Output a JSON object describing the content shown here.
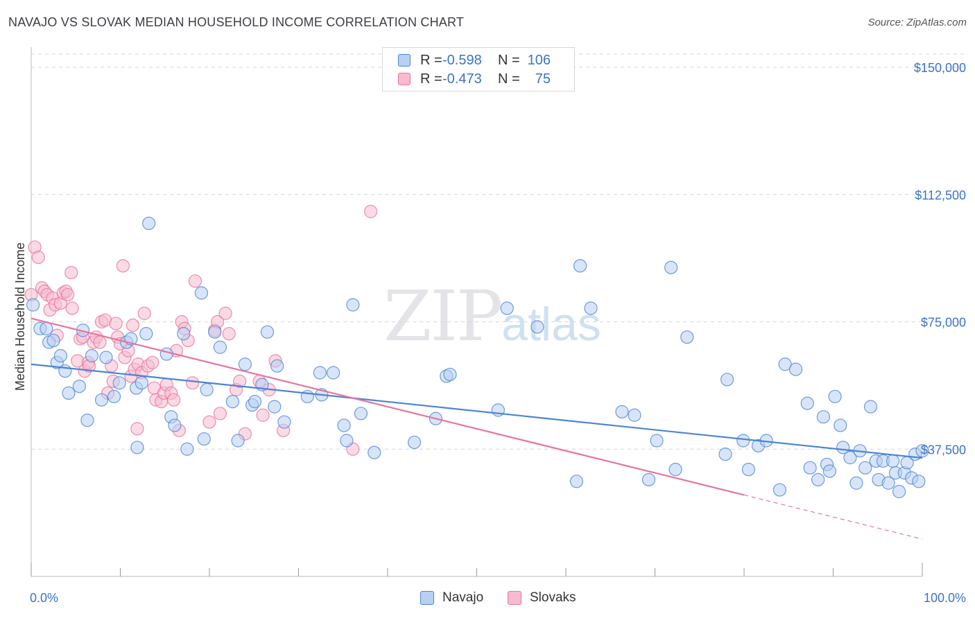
{
  "header": {
    "title": "NAVAJO VS SLOVAK MEDIAN HOUSEHOLD INCOME CORRELATION CHART",
    "source": "Source: ZipAtlas.com"
  },
  "watermark": {
    "main": "ZIP",
    "sub": "atlas"
  },
  "legend": {
    "navajo": {
      "r_label": "R =",
      "r_value": "-0.598",
      "n_label": "N =",
      "n_value": "106"
    },
    "slovaks": {
      "r_label": "R =",
      "r_value": "-0.473",
      "n_label": "N =",
      "n_value": "75"
    }
  },
  "colors": {
    "navajo": "#4a84d6",
    "navajo_fill": "#b8d0f2",
    "slovaks": "#e8739b",
    "slovaks_fill": "#f6bccd",
    "tick_text": "#3a73c8",
    "grid": "#d6d6dc"
  },
  "chart_data": {
    "type": "scatter",
    "title": "NAVAJO VS SLOVAK MEDIAN HOUSEHOLD INCOME CORRELATION CHART",
    "xlabel": "",
    "ylabel": "Median Household Income",
    "xlim": [
      0,
      100
    ],
    "ylim": [
      0,
      157000
    ],
    "x_tick_labels": [
      "0.0%",
      "100.0%"
    ],
    "y_ticks": [
      37500,
      75000,
      112500,
      150000
    ],
    "y_tick_labels": [
      "$37,500",
      "$75,000",
      "$112,500",
      "$150,000"
    ],
    "grid": true,
    "legend_position": "top-center",
    "series": [
      {
        "name": "Navajo",
        "color": "#4a84d6",
        "trend": {
          "x": [
            0,
            100
          ],
          "y": [
            62500,
            34900
          ]
        },
        "points": [
          [
            0.2,
            80000
          ],
          [
            1.0,
            73000
          ],
          [
            1.7,
            73000
          ],
          [
            2.0,
            69000
          ],
          [
            2.5,
            69500
          ],
          [
            2.9,
            63000
          ],
          [
            3.3,
            65000
          ],
          [
            3.8,
            60500
          ],
          [
            4.2,
            54000
          ],
          [
            5.4,
            56000
          ],
          [
            5.8,
            72500
          ],
          [
            6.3,
            46000
          ],
          [
            6.8,
            65000
          ],
          [
            7.9,
            52000
          ],
          [
            8.4,
            64500
          ],
          [
            9.3,
            53000
          ],
          [
            9.9,
            57000
          ],
          [
            10.7,
            69000
          ],
          [
            11.2,
            70000
          ],
          [
            11.8,
            55500
          ],
          [
            11.9,
            38000
          ],
          [
            12.4,
            57000
          ],
          [
            12.9,
            71500
          ],
          [
            13.2,
            104000
          ],
          [
            15.2,
            65500
          ],
          [
            15.7,
            47000
          ],
          [
            16.1,
            44500
          ],
          [
            17.1,
            71500
          ],
          [
            17.5,
            37500
          ],
          [
            19.1,
            83500
          ],
          [
            19.4,
            40500
          ],
          [
            19.7,
            55000
          ],
          [
            20.6,
            72000
          ],
          [
            21.2,
            67500
          ],
          [
            22.6,
            51500
          ],
          [
            23.2,
            40000
          ],
          [
            24.0,
            62500
          ],
          [
            24.8,
            50500
          ],
          [
            25.1,
            51500
          ],
          [
            25.9,
            56500
          ],
          [
            26.5,
            72000
          ],
          [
            27.3,
            50000
          ],
          [
            27.6,
            62000
          ],
          [
            28.4,
            45500
          ],
          [
            31.0,
            53000
          ],
          [
            32.4,
            60000
          ],
          [
            32.6,
            53500
          ],
          [
            33.9,
            60000
          ],
          [
            35.1,
            44500
          ],
          [
            35.4,
            40000
          ],
          [
            36.1,
            80000
          ],
          [
            37.0,
            48000
          ],
          [
            38.5,
            36500
          ],
          [
            43.0,
            39500
          ],
          [
            45.4,
            46500
          ],
          [
            46.6,
            59000
          ],
          [
            47.0,
            59500
          ],
          [
            52.4,
            49000
          ],
          [
            53.4,
            79000
          ],
          [
            56.8,
            73500
          ],
          [
            61.2,
            28000
          ],
          [
            61.6,
            91500
          ],
          [
            62.8,
            79000
          ],
          [
            66.3,
            48500
          ],
          [
            67.7,
            47500
          ],
          [
            69.3,
            28500
          ],
          [
            70.2,
            40000
          ],
          [
            71.8,
            91000
          ],
          [
            72.3,
            31500
          ],
          [
            73.6,
            70500
          ],
          [
            77.9,
            36000
          ],
          [
            78.1,
            58000
          ],
          [
            79.9,
            40000
          ],
          [
            80.5,
            31500
          ],
          [
            81.6,
            38500
          ],
          [
            82.5,
            40000
          ],
          [
            84.0,
            25500
          ],
          [
            84.6,
            62500
          ],
          [
            85.8,
            61000
          ],
          [
            87.1,
            51000
          ],
          [
            87.4,
            32000
          ],
          [
            88.3,
            28500
          ],
          [
            88.9,
            47000
          ],
          [
            89.3,
            33000
          ],
          [
            89.6,
            31000
          ],
          [
            90.2,
            53000
          ],
          [
            90.8,
            44500
          ],
          [
            91.1,
            38000
          ],
          [
            91.9,
            35000
          ],
          [
            92.6,
            27500
          ],
          [
            93.0,
            37000
          ],
          [
            93.6,
            32000
          ],
          [
            94.2,
            50000
          ],
          [
            94.8,
            34000
          ],
          [
            95.1,
            28500
          ],
          [
            95.6,
            34000
          ],
          [
            96.2,
            27500
          ],
          [
            96.7,
            34000
          ],
          [
            97.0,
            30500
          ],
          [
            97.4,
            25000
          ],
          [
            98.0,
            30500
          ],
          [
            98.3,
            33500
          ],
          [
            98.8,
            29000
          ],
          [
            99.2,
            36000
          ],
          [
            99.6,
            28000
          ],
          [
            100.0,
            37000
          ]
        ]
      },
      {
        "name": "Slovaks",
        "color": "#e8739b",
        "trend": {
          "x": [
            0,
            80
          ],
          "y": [
            76000,
            24000
          ]
        },
        "trend_extension": {
          "x": [
            80,
            100
          ],
          "y": [
            24000,
            11000
          ]
        },
        "points": [
          [
            0.0,
            83000
          ],
          [
            0.4,
            97000
          ],
          [
            0.8,
            94000
          ],
          [
            1.2,
            85000
          ],
          [
            1.5,
            84000
          ],
          [
            1.8,
            83000
          ],
          [
            2.1,
            78500
          ],
          [
            2.4,
            82000
          ],
          [
            2.7,
            80000
          ],
          [
            2.9,
            71000
          ],
          [
            3.3,
            80500
          ],
          [
            3.6,
            83500
          ],
          [
            3.9,
            84000
          ],
          [
            4.1,
            83000
          ],
          [
            4.5,
            89500
          ],
          [
            4.6,
            79000
          ],
          [
            5.2,
            63500
          ],
          [
            5.5,
            70000
          ],
          [
            5.8,
            70500
          ],
          [
            6.0,
            60500
          ],
          [
            6.4,
            63000
          ],
          [
            6.5,
            62000
          ],
          [
            7.0,
            69000
          ],
          [
            7.3,
            70500
          ],
          [
            7.7,
            69000
          ],
          [
            7.9,
            75000
          ],
          [
            8.3,
            75500
          ],
          [
            8.6,
            54000
          ],
          [
            9.0,
            62000
          ],
          [
            9.2,
            57500
          ],
          [
            9.5,
            74500
          ],
          [
            9.7,
            70500
          ],
          [
            10.0,
            68500
          ],
          [
            10.3,
            91500
          ],
          [
            10.5,
            64500
          ],
          [
            10.9,
            66500
          ],
          [
            11.2,
            59000
          ],
          [
            11.4,
            74000
          ],
          [
            11.6,
            61000
          ],
          [
            11.9,
            43500
          ],
          [
            12.0,
            62500
          ],
          [
            12.4,
            60000
          ],
          [
            12.7,
            77500
          ],
          [
            13.1,
            62000
          ],
          [
            13.6,
            63000
          ],
          [
            13.8,
            55500
          ],
          [
            14.0,
            52000
          ],
          [
            14.6,
            51500
          ],
          [
            14.9,
            54000
          ],
          [
            15.2,
            56500
          ],
          [
            15.7,
            54000
          ],
          [
            16.0,
            52000
          ],
          [
            16.3,
            66500
          ],
          [
            16.6,
            43000
          ],
          [
            16.9,
            75000
          ],
          [
            17.2,
            73000
          ],
          [
            17.6,
            69500
          ],
          [
            18.1,
            57000
          ],
          [
            18.4,
            87000
          ],
          [
            20.0,
            45500
          ],
          [
            20.6,
            72500
          ],
          [
            20.9,
            75000
          ],
          [
            21.2,
            48000
          ],
          [
            21.8,
            77500
          ],
          [
            22.2,
            71500
          ],
          [
            23.0,
            55000
          ],
          [
            23.4,
            57500
          ],
          [
            24.0,
            42000
          ],
          [
            25.6,
            57500
          ],
          [
            26.0,
            47500
          ],
          [
            26.7,
            55000
          ],
          [
            27.4,
            63500
          ],
          [
            28.3,
            43000
          ],
          [
            36.1,
            37500
          ],
          [
            38.1,
            107500
          ]
        ]
      }
    ]
  }
}
